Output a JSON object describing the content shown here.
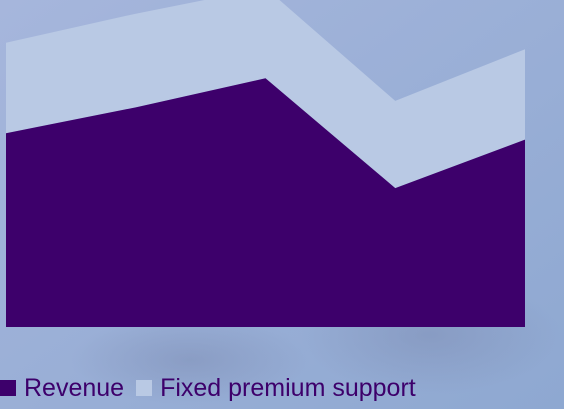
{
  "chart_data": {
    "type": "area",
    "stacked": true,
    "x": [
      0,
      1,
      2,
      3,
      4
    ],
    "series": [
      {
        "name": "Revenue",
        "color": "#3d006b",
        "values": [
          60,
          68,
          77,
          43,
          58
        ]
      },
      {
        "name": "Fixed premium support",
        "color": "#b9c9e4",
        "values": [
          28,
          29,
          28,
          27,
          28
        ]
      }
    ],
    "ylim": [
      0,
      100
    ],
    "grid": false,
    "legend": "bottom-left",
    "title": "",
    "xlabel": "",
    "ylabel": ""
  },
  "colors": {
    "background_top": "#a6b6dc",
    "background_bottom": "#8ea8d1"
  }
}
